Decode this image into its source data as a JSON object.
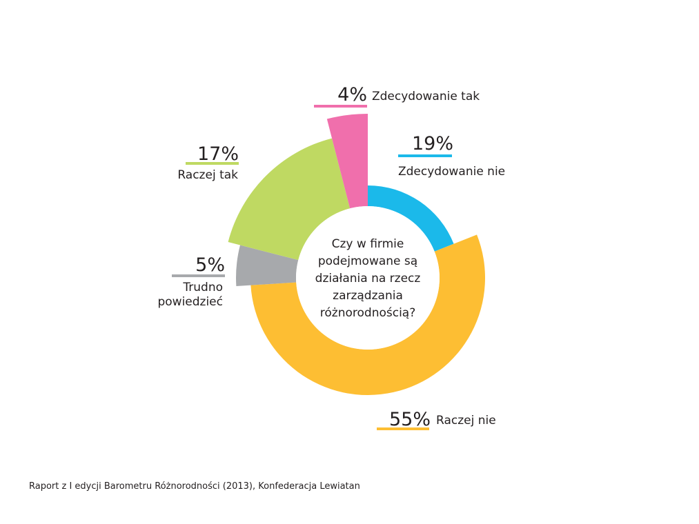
{
  "chart_data": {
    "type": "pie",
    "subtype": "donut",
    "title": "Czy w firmie podejmowane są działania na rzecz zarządzania różnorodnością?",
    "title_lines": [
      "Czy w firmie",
      "podejmowane są",
      "działania na rzecz",
      "zarządzania",
      "różnorodnością?"
    ],
    "slices": [
      {
        "label": "Zdecydowanie nie",
        "label_lines": [
          "Zdecydowanie nie"
        ],
        "value": 19,
        "value_label": "19%",
        "color": "#1bb9ea"
      },
      {
        "label": "Raczej nie",
        "label_lines": [
          "Raczej nie"
        ],
        "value": 55,
        "value_label": "55%",
        "color": "#fdbe33"
      },
      {
        "label": "Trudno powiedzieć",
        "label_lines": [
          "Trudno",
          "powiedzieć"
        ],
        "value": 5,
        "value_label": "5%",
        "color": "#a7a9ac"
      },
      {
        "label": "Raczej tak",
        "label_lines": [
          "Raczej tak"
        ],
        "value": 17,
        "value_label": "17%",
        "color": "#bfd962"
      },
      {
        "label": "Zdecydowanie tak",
        "label_lines": [
          "Zdecydowanie tak"
        ],
        "value": 4,
        "value_label": "4%",
        "color": "#f06fac"
      }
    ]
  },
  "source": "Raport z I edycji Barometru Różnorodności (2013), Konfederacja Lewiatan"
}
